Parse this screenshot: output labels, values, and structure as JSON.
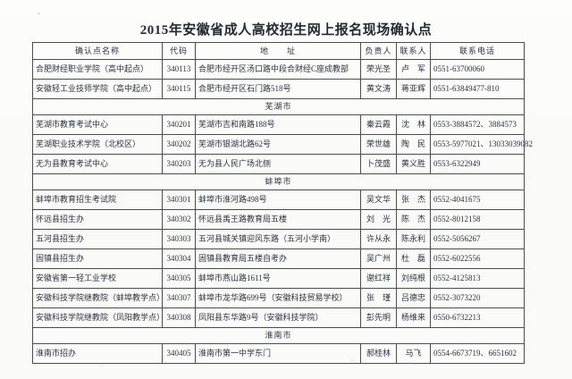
{
  "title": "2015年安徽省成人高校招生网上报名现场确认点",
  "table": {
    "headers": [
      "确认点名称",
      "代码",
      "地　　址",
      "负责人",
      "联系人",
      "联系电话"
    ],
    "groups": [
      {
        "section": null,
        "rows": [
          {
            "name": "合肥财经职业学院（高中起点）",
            "code": "340113",
            "address": "合肥市经开区汤口路中段合财经C座成教部",
            "manager": "荣光圣",
            "contact": "卢　军",
            "phone": "0551-63700060"
          },
          {
            "name": "安徽轻工业技师学院（高中起点）",
            "code": "340115",
            "address": "合肥市经开区石门路518号",
            "manager": "黄文涛",
            "contact": "蒋亚辉",
            "phone": "0551-63849477-810"
          }
        ]
      },
      {
        "section": "芜湖市",
        "rows": [
          {
            "name": "芜湖市教育考试中心",
            "code": "340201",
            "address": "芜湖市吉和南路188号",
            "manager": "秦云霞",
            "contact": "沈　林",
            "phone": "0553-3884572、3884573"
          },
          {
            "name": "芜湖职业技术学院（北校区）",
            "code": "340202",
            "address": "芜湖市银湖北路62号",
            "manager": "荣世雄",
            "contact": "陶　民",
            "phone": "0553-5977021、13033039082"
          },
          {
            "name": "无为县教育考试中心",
            "code": "340203",
            "address": "无为县人民广场北侧",
            "manager": "卜茂盛",
            "contact": "黄义胜",
            "phone": "0553-6322949"
          }
        ]
      },
      {
        "section": "蚌埠市",
        "rows": [
          {
            "name": "蚌埠市教育招生考试院",
            "code": "340301",
            "address": "蚌埠市淮河路498号",
            "manager": "吴文华",
            "contact": "张　杰",
            "phone": "0552-4041675"
          },
          {
            "name": "怀远县招生办",
            "code": "340302",
            "address": "怀远县禹王路教育局五楼",
            "manager": "刘　光",
            "contact": "陈　杰",
            "phone": "0552-8012158"
          },
          {
            "name": "五河县招生办",
            "code": "340303",
            "address": "五河县城关镇迎风东路（五河小学南）",
            "manager": "许从永",
            "contact": "陈永利",
            "phone": "0552-5056267"
          },
          {
            "name": "固镇县招生办",
            "code": "340304",
            "address": "固镇县教育局五楼自考办",
            "manager": "吴广州",
            "contact": "杜　磊",
            "phone": "0552-6022556"
          },
          {
            "name": "安徽省第一轻工业学校",
            "code": "340305",
            "address": "蚌埠市燕山路1611号",
            "manager": "谢红祥",
            "contact": "刘纯根",
            "phone": "0552-4125813"
          },
          {
            "name": "安徽科技学院继教院（蚌埠教学点）",
            "code": "340307",
            "address": "蚌埠市龙华路699号（安徽科技贸易学校）",
            "manager": "张　瑾",
            "contact": "吕德忠",
            "phone": "0552-3073220"
          },
          {
            "name": "安徽科技学院继教院（凤阳教学点）",
            "code": "340308",
            "address": "凤阳县东华路9号（安徽科技学院）",
            "manager": "彭先明",
            "contact": "杨维来",
            "phone": "0550-6732213"
          }
        ]
      },
      {
        "section": "淮南市",
        "rows": [
          {
            "name": "淮南市招办",
            "code": "340405",
            "address": "淮南市第一中学东门",
            "manager": "郝桂林",
            "contact": "马飞",
            "phone": "0554-6673719、6651602"
          }
        ]
      }
    ]
  }
}
